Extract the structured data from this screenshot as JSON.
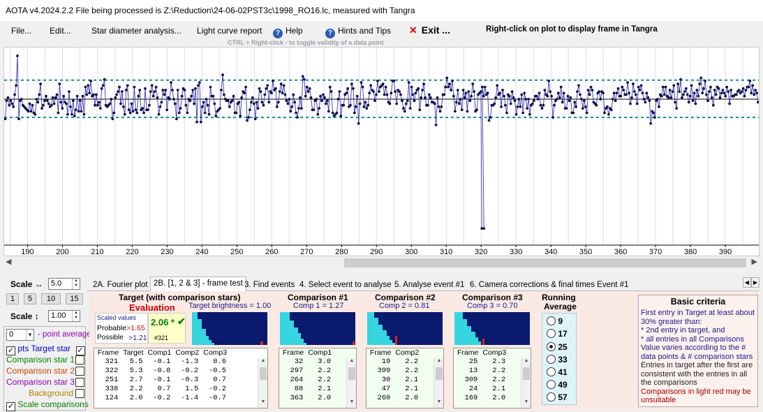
{
  "window": {
    "title": "AOTA v4.2024.2.2    File being processed is Z:\\Reduction\\24-06-02PST3c\\1998_RO16.lc, measured with Tangra"
  },
  "menu": {
    "file": "File...",
    "edit": "Edit...",
    "star_diameter": "Star diameter analysis...",
    "light_curve": "Light curve report",
    "help": "Help",
    "hints": "Hints and Tips",
    "exit": "Exit ...",
    "ctrl_hint": "CTRL + Right-click  -  to toggle validity of a data point",
    "right_click_hint": "Right-click on plot to display frame in Tangra",
    "help_icon": "question-circle-icon",
    "exit_icon": "red-x-icon"
  },
  "plot": {
    "x_ticks": [
      "190",
      "200",
      "210",
      "220",
      "230",
      "240",
      "250",
      "260",
      "270",
      "280",
      "290",
      "300",
      "310",
      "320",
      "330",
      "340",
      "350",
      "360",
      "370",
      "380",
      "390"
    ],
    "x_range": [
      183.3,
      399.6
    ],
    "y_range": [
      -9.6,
      3.4
    ],
    "baseline": 0,
    "upper_band": 1.25,
    "lower_band": -1.2,
    "colors": {
      "line": "#3a3ab0",
      "point": "#10104a",
      "band": "#1a8a8a",
      "grid": "#e8d6e8",
      "baseline": "#000000"
    },
    "values": [
      -1.3,
      -0.1,
      0.1,
      -0.4,
      -0.1,
      -0.3,
      -0.5,
      0.3,
      0.9,
      2.85,
      -1.3,
      -0.1,
      0.0,
      -0.4,
      -0.5,
      -0.6,
      -0.7,
      -0.8,
      -0.3,
      -0.8,
      -0.4,
      -0.9,
      -1.0,
      0.0,
      -0.2,
      0.3,
      1.0,
      -0.6,
      -0.4,
      -0.1,
      0.2,
      -0.1,
      -0.3,
      -0.5,
      -0.4,
      0.1,
      -0.3,
      0.1,
      0.3,
      -0.9,
      1.0,
      -0.2,
      -0.6,
      0.2,
      -0.2,
      -0.3,
      -1.0,
      0.5,
      -0.5,
      -1.0,
      -0.1,
      -1.1,
      -0.7,
      0.2,
      -0.8,
      -0.1,
      -0.8,
      0.2,
      -1.0,
      0.8,
      0.3,
      0.9,
      0.4,
      1.2,
      0.2,
      0.3,
      -0.4,
      0.3,
      -0.4,
      -0.2,
      -0.6,
      0.7,
      0.9,
      1.3,
      -0.4,
      -0.5,
      -0.4,
      -0.3,
      0.0,
      -1.3,
      -0.9,
      0.1,
      0.3,
      0.5,
      0.8,
      -0.3,
      0.5,
      -0.5,
      -1.0,
      0.6,
      0.9,
      -0.7,
      -0.9,
      -0.3,
      -0.8,
      0.8,
      -0.7,
      -0.9,
      0.2,
      0.6,
      -0.7,
      -0.6,
      -0.9,
      0.7,
      -0.7,
      -0.7,
      -0.4,
      0.5,
      0.9,
      0.2,
      0.5,
      0.8,
      0.1,
      -1.0,
      -0.5,
      -0.2,
      0.6,
      0.3,
      0.6,
      -0.7,
      0.1,
      0.0,
      1.1,
      0.6,
      0.0,
      -0.3,
      -1.3,
      0.6,
      -0.9,
      -0.6,
      0.2,
      0.7,
      0.6,
      -0.4,
      -0.9,
      0.0,
      -0.1,
      0.2,
      0.6,
      -0.3,
      0.7,
      -1.5,
      0.9,
      1.1,
      -1.5,
      -0.5,
      -0.2,
      -0.9,
      0.0,
      -0.4,
      -1.0,
      0.8,
      0.2,
      0.2,
      -0.3,
      -1.1,
      -0.8,
      -0.7,
      -0.6,
      0.6,
      1.6,
      0.3,
      0.0,
      -0.1,
      -0.1,
      -0.5,
      -0.2,
      -0.1,
      0.2,
      -0.9,
      -0.9,
      -0.3,
      -0.2,
      -1.1,
      0.1,
      0.5,
      0.4,
      0.8,
      -1.4,
      -1.2,
      -0.7,
      -0.2,
      0.1,
      -0.3,
      -1.3,
      -0.2,
      -0.6,
      0.7,
      0.5,
      -0.2,
      -0.4,
      0.3,
      0.7,
      0.9,
      -0.2,
      0.5,
      0.4,
      1.2,
      0.6,
      0.7,
      -0.5,
      -0.2,
      0.5,
      1.0,
      0.4,
      0.9,
      0.3,
      -0.1,
      -0.3,
      0.0,
      -0.8,
      -0.5,
      0.3,
      -0.2,
      -0.9,
      -1.2,
      -0.6,
      0.1,
      -0.6,
      1.5,
      1.3,
      0.2,
      0.8,
      0.5,
      0.7,
      0.1,
      -0.7,
      -0.7,
      -0.1,
      0.0,
      -1.0,
      -0.6,
      0.2,
      -0.1,
      0.3,
      0.1,
      -0.3,
      -0.1,
      -0.8,
      0.8,
      0.5,
      -0.9,
      -1.1,
      -1.0,
      -0.9,
      0.0,
      0.5,
      -1.1,
      -0.4,
      -0.4,
      0.3,
      0.4,
      0.7,
      -0.5,
      -0.4,
      1.0,
      0.7,
      -0.9,
      -0.5,
      0.2,
      -1.6,
      -0.3,
      1.1,
      0.8,
      -0.5,
      -0.2,
      -0.6,
      -0.4,
      0.4,
      0.9,
      0.6,
      0.5,
      -0.1,
      0.3,
      1.2,
      0.5,
      0.8,
      0.9,
      1.0,
      0.3,
      0.8,
      0.3,
      -0.2,
      -0.3,
      0.4,
      1.2,
      1.2,
      0.5,
      -0.3,
      0.6,
      0.5,
      0.3,
      -0.1,
      -0.6,
      -0.8,
      -0.3,
      -0.1,
      1.1,
      -0.6,
      0.8,
      0.3,
      -0.1,
      0.4,
      0.6,
      0.7,
      -0.7,
      0.1,
      0.6,
      1.0,
      0.1,
      -0.4,
      -0.4,
      0.3,
      0.1,
      -0.2,
      -0.2,
      -0.3,
      -1.7,
      0.1,
      -0.5,
      -0.8,
      -0.5,
      0.3,
      0.3,
      0.8,
      1.4,
      0.8,
      1.0,
      0.6,
      1.2,
      0.2,
      -0.8,
      -0.2,
      0.6,
      -0.3,
      0.0,
      -0.7,
      0.6,
      0.1,
      0.4,
      -0.8,
      0.5,
      -0.1,
      0.2,
      1.0,
      0.5,
      -0.8,
      -0.7,
      0.3,
      0.4,
      0.5,
      0.8,
      0.2,
      0.8,
      0.3,
      0.4,
      -1.4,
      -1.2,
      -0.4,
      -0.4,
      -0.3,
      0.1,
      0.9,
      0.3,
      0.4,
      -0.5,
      0.6,
      0.2,
      -0.4,
      -0.9,
      0.3,
      0.2,
      -0.3,
      0.5,
      0.1,
      -0.1,
      -1.0,
      -0.5,
      0.0,
      -0.5,
      0.3,
      -0.9,
      0.4,
      0.0,
      -0.6,
      0.0,
      -1.0,
      -0.4,
      -0.3,
      -0.1,
      0.2,
      0.2,
      0.0,
      0.4,
      -0.4,
      -0.6,
      -0.4,
      0.6,
      0.3,
      0.2,
      1.2,
      0.5,
      0.2,
      -1.2,
      -0.4,
      -0.1,
      0.0,
      0.4,
      0.1,
      0.8,
      -0.2,
      0.4,
      -0.6,
      -0.6,
      0.2,
      -0.1,
      0.1,
      -0.9,
      -0.9,
      -0.2,
      -0.5,
      0.5,
      0.9,
      0.3,
      0.0,
      -0.6,
      -0.1,
      -0.5,
      -0.9,
      0.6,
      0.3,
      0.8,
      0.6,
      -0.2,
      -0.3,
      -0.4,
      0.4,
      0.5,
      0.0,
      0.5,
      0.4,
      -0.9,
      -0.6,
      -0.5,
      -1.0,
      -0.6,
      -0.7,
      0.0,
      0.4,
      -0.1,
      0.4,
      0.7,
      0.2,
      0.2,
      0.8,
      0.6,
      0.3,
      0.3,
      1.1,
      0.4,
      -0.3,
      0.1,
      1.0,
      0.5,
      0.3,
      -0.3,
      0.8,
      0.6,
      0.9,
      0.4,
      0.0,
      -0.2,
      0.4,
      0.1,
      -0.1,
      -1.6,
      -0.8,
      -0.9,
      -1.2,
      -0.1,
      0.0,
      -0.5,
      0.3,
      0.2,
      0.8,
      0.3,
      0.8,
      0.2,
      0.1,
      0.6,
      0.1,
      0.5,
      0.9,
      -0.2,
      -0.6,
      1.0,
      0.5,
      1.3,
      0.1,
      0.3,
      0.5,
      0.7,
      0.3,
      -0.2,
      0.2,
      0.9,
      -0.1,
      0.4,
      -0.3,
      0.6,
      0.2,
      1.0,
      1.4,
      0.4,
      0.7,
      1.2,
      0.3,
      -0.1,
      0.5,
      0.8,
      0.1,
      -0.4,
      0.6,
      0.3,
      0.8,
      0.7,
      0.1,
      0.4,
      0.6,
      0.4,
      0.2,
      0.8,
      0.5,
      -0.3,
      0.6,
      0.2,
      0.2,
      0.3,
      0.3,
      0.5,
      0.6,
      0.4,
      0.5,
      0.7,
      0.2,
      0.6,
      0.8,
      0.8,
      1.2,
      0.4,
      0.9,
      0.3,
      0.6,
      0.4,
      -0.2
    ],
    "event_values": [
      -8.5,
      -8.5
    ]
  },
  "left": {
    "scale_h_label": "Scale ↔",
    "scale_h_value": "5.0",
    "buttons": [
      "1",
      "5",
      "10",
      "15"
    ],
    "scale_v_label": "Scale ↕",
    "scale_v_value": "1.00",
    "point_avg_value": "0",
    "point_avg_label": "- point average",
    "pts_label": "pts",
    "target_star": "Target star",
    "comparison1": "Comparison star 1",
    "comparison2": "Comparison star 2",
    "comparison3": "Comparison star 3",
    "background": "Background",
    "scale_comparisons": "Scale comparisons",
    "colors": {
      "target": "#0000cc",
      "comp1": "#008000",
      "comp2": "#d04000",
      "comp3": "#9000b0",
      "background": "#b08000"
    }
  },
  "tabs": [
    {
      "label": "2A. Fourier plot"
    },
    {
      "label": "2B. [1, 2 & 3] - frame test"
    },
    {
      "label": "3. Find events"
    },
    {
      "label": "4. Select event to analyse"
    },
    {
      "label": "5. Analyse event #1"
    },
    {
      "label": "6. Camera corrections & final times Event #1"
    }
  ],
  "target": {
    "title": "Target (with comparison stars)",
    "evaluation": "Evaluation",
    "brightness": "Target  brightness = 1.00",
    "scaled_values": "Scaled values",
    "probable_label": "Probable",
    "probable_value": ">1.65",
    "possible_label": "Possible",
    "possible_value": ">1.21",
    "score": "2.06 *",
    "check_icon": "green-check-icon",
    "frame": "#321",
    "headers": [
      "Frame",
      "Target",
      "Comp1",
      "Comp2",
      "Comp3"
    ],
    "rows": [
      [
        "321",
        "5.5",
        "-0.1",
        "-1.3",
        "0.6"
      ],
      [
        "322",
        "5.3",
        "-0.8",
        "-0.2",
        "-0.5"
      ],
      [
        "251",
        "2.7",
        "-0.1",
        "-0.3",
        "0.7"
      ],
      [
        "338",
        "2.2",
        "0.7",
        "1.5",
        "-0.2"
      ],
      [
        "124",
        "2.0",
        "-0.2",
        "-1.4",
        "-0.7"
      ]
    ]
  },
  "comparisons": [
    {
      "title": "Comparison #1",
      "sub": "Comp 1 = 1.27",
      "headers": [
        "Frame",
        "Comp1"
      ],
      "rows": [
        [
          "32",
          "3.0"
        ],
        [
          "297",
          "2.2"
        ],
        [
          "264",
          "2.2"
        ],
        [
          "88",
          "2.1"
        ],
        [
          "363",
          "2.0"
        ]
      ]
    },
    {
      "title": "Comparison #2",
      "sub": "Comp 2 = 0.81",
      "headers": [
        "Frame",
        "Comp2"
      ],
      "rows": [
        [
          "19",
          "2.2"
        ],
        [
          "399",
          "2.2"
        ],
        [
          "30",
          "2.1"
        ],
        [
          "47",
          "2.1"
        ],
        [
          "260",
          "2.0"
        ]
      ]
    },
    {
      "title": "Comparison #3",
      "sub": "Comp 3 = 0.70",
      "headers": [
        "Frame",
        "Comp3"
      ],
      "rows": [
        [
          "25",
          "2.3"
        ],
        [
          "13",
          "2.2"
        ],
        [
          "309",
          "2.2"
        ],
        [
          "24",
          "2.1"
        ],
        [
          "169",
          "2.0"
        ]
      ]
    }
  ],
  "running": {
    "title1": "Running",
    "title2": "Average",
    "options": [
      "9",
      "17",
      "25",
      "33",
      "41",
      "49",
      "57"
    ],
    "selected": "25"
  },
  "criteria": {
    "title": "Basic criteria",
    "lines": [
      "First entry in Target at least about 30% greater than:",
      "*  2nd  entry in target, and",
      "*  all entries in all Comparisons",
      "Value varies according to the # data points & # comparison stars",
      "Entries in target after the first are consistent with the entries in all the comparisons",
      "Comparisons in light red may be unsuitable"
    ]
  }
}
